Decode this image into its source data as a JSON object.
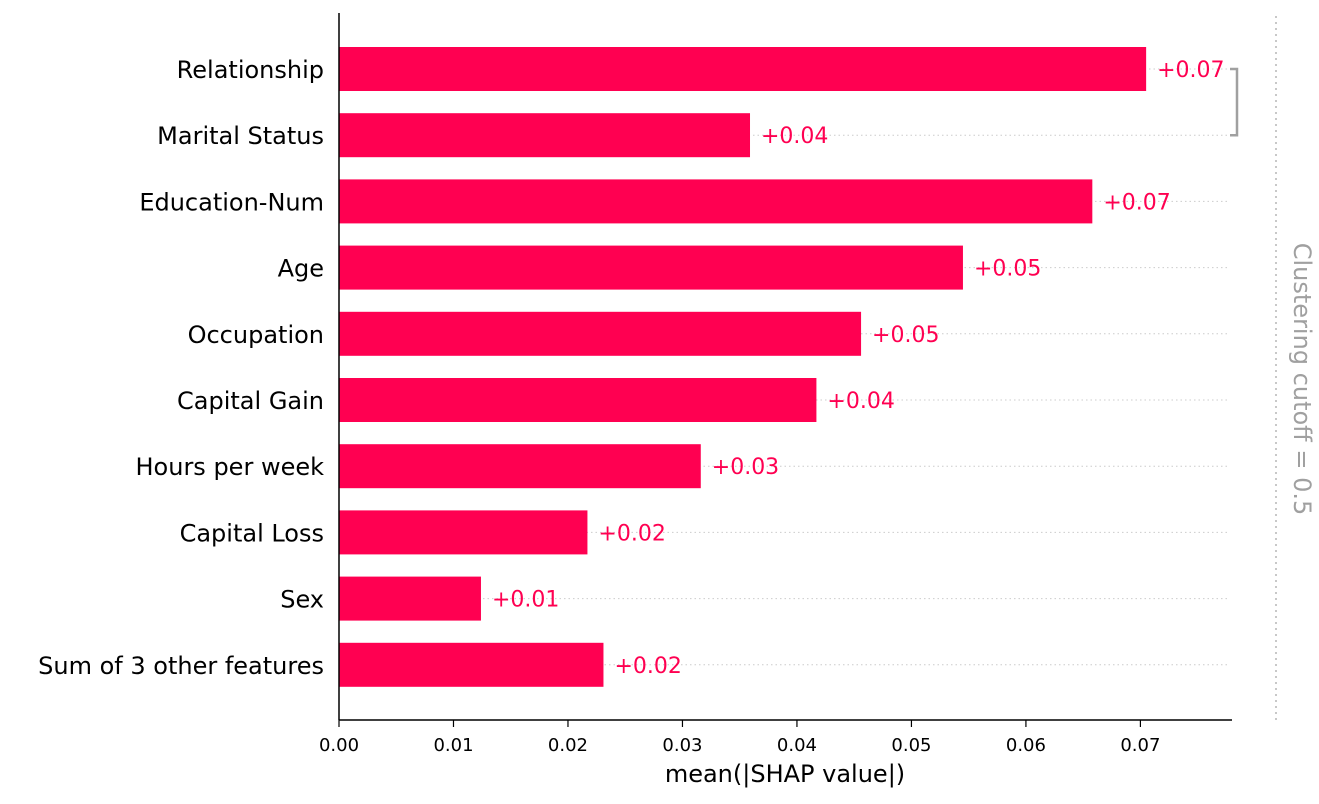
{
  "chart_data": {
    "type": "bar",
    "orientation": "horizontal",
    "categories": [
      "Relationship",
      "Marital Status",
      "Education-Num",
      "Age",
      "Occupation",
      "Capital Gain",
      "Hours per week",
      "Capital Loss",
      "Sex",
      "Sum of 3 other features"
    ],
    "values": [
      0.0705,
      0.0359,
      0.0658,
      0.0545,
      0.0456,
      0.0417,
      0.0316,
      0.0217,
      0.0124,
      0.0231
    ],
    "value_labels": [
      "+0.07",
      "+0.04",
      "+0.07",
      "+0.05",
      "+0.05",
      "+0.04",
      "+0.03",
      "+0.02",
      "+0.01",
      "+0.02"
    ],
    "xlabel": "mean(|SHAP value|)",
    "xlim": [
      0,
      0.078
    ],
    "xticks": [
      0.0,
      0.01,
      0.02,
      0.03,
      0.04,
      0.05,
      0.06,
      0.07
    ],
    "xtick_labels": [
      "0.00",
      "0.01",
      "0.02",
      "0.03",
      "0.04",
      "0.05",
      "0.06",
      "0.07"
    ],
    "clustering": {
      "label": "Clustering cutoff = 0.5",
      "merged_pair": [
        "Relationship",
        "Marital Status"
      ]
    },
    "grid": "horizontal dotted guide per bar",
    "colors": {
      "bar": "#ff0051",
      "value_text": "#ff0051",
      "axis": "#000000",
      "guide": "#cccccc",
      "cluster": "#a0a0a0"
    }
  }
}
